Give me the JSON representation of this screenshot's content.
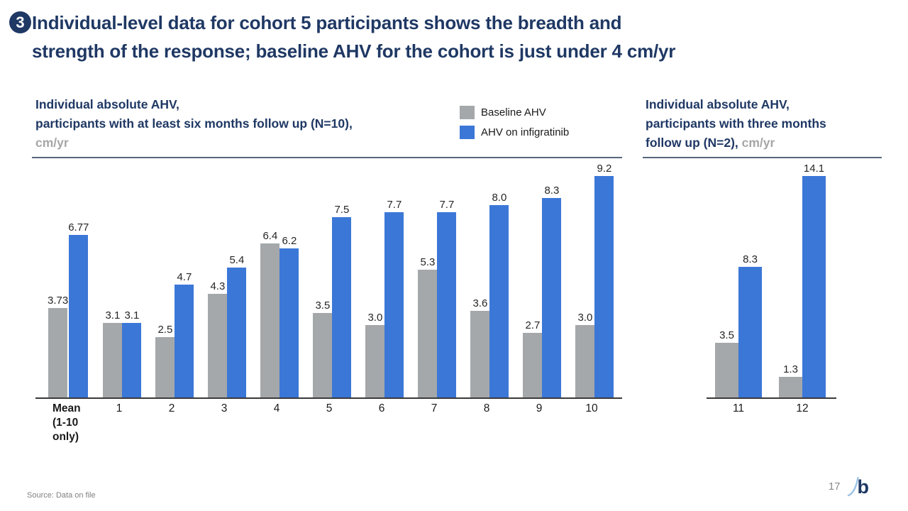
{
  "slide": {
    "badge": "3",
    "title_line1": "Individual-level data for cohort 5 participants shows the breadth and",
    "title_line2": "strength of the response; baseline AHV for the cohort is just under 4 cm/yr",
    "source": "Source: Data on file",
    "page_number": "17",
    "logo_letter": "b"
  },
  "colors": {
    "title_navy": "#1F3864",
    "baseline_gray": "#A4A8AB",
    "infigratinib_blue": "#3B77D7",
    "muted_gray_text": "#A6A6A6",
    "divider": "#56687E"
  },
  "left_chart_header": {
    "line1": "Individual absolute AHV,",
    "line2": "participants with at least six months follow up (N=10),",
    "line3_gray": "cm/yr"
  },
  "right_chart_header": {
    "line1": "Individual absolute AHV,",
    "line2": "participants with three months",
    "line3_bold": "follow up (N=2),",
    "line3_gray": "cm/yr"
  },
  "legend": {
    "items": [
      {
        "label": "Baseline AHV",
        "color": "#A4A8AB"
      },
      {
        "label": "AHV on infigratinib",
        "color": "#3B77D7"
      }
    ]
  },
  "chart_data": [
    {
      "id": "chart-left",
      "type": "bar",
      "title": "Individual absolute AHV, participants with at least six months follow up (N=10), cm/yr",
      "categories": [
        [
          "Mean",
          "(1-10",
          "only)"
        ],
        "1",
        "2",
        "3",
        "4",
        "5",
        "6",
        "7",
        "8",
        "9",
        "10"
      ],
      "series": [
        {
          "name": "Baseline AHV",
          "color": "#A4A8AB",
          "values": [
            3.73,
            3.1,
            2.5,
            4.3,
            6.4,
            3.5,
            3.0,
            5.3,
            3.6,
            2.7,
            3.0
          ],
          "labels": [
            "3.73",
            "3.1",
            "2.5",
            "4.3",
            "6.4",
            "3.5",
            "3.0",
            "5.3",
            "3.6",
            "2.7",
            "3.0"
          ]
        },
        {
          "name": "AHV on infigratinib",
          "color": "#3B77D7",
          "values": [
            6.77,
            3.1,
            4.7,
            5.4,
            6.2,
            7.5,
            7.7,
            7.7,
            8.0,
            8.3,
            9.2
          ],
          "labels": [
            "6.77",
            "3.1",
            "4.7",
            "5.4",
            "6.2",
            "7.5",
            "7.7",
            "7.7",
            "8.0",
            "8.3",
            "9.2"
          ]
        }
      ],
      "ylabel": "cm/yr",
      "ylim": [
        0,
        9.8
      ],
      "grid": false,
      "value_labels": true,
      "legend_position": "top-center"
    },
    {
      "id": "chart-right",
      "type": "bar",
      "title": "Individual absolute AHV, participants with three months follow up (N=2), cm/yr",
      "categories": [
        "11",
        "12"
      ],
      "series": [
        {
          "name": "Baseline AHV",
          "color": "#A4A8AB",
          "values": [
            3.5,
            1.3
          ],
          "labels": [
            "3.5",
            "1.3"
          ]
        },
        {
          "name": "AHV on infigratinib",
          "color": "#3B77D7",
          "values": [
            8.3,
            14.1
          ],
          "labels": [
            "8.3",
            "14.1"
          ]
        }
      ],
      "ylabel": "cm/yr",
      "ylim": [
        0,
        15
      ],
      "grid": false,
      "value_labels": true,
      "legend_position": "none"
    }
  ]
}
